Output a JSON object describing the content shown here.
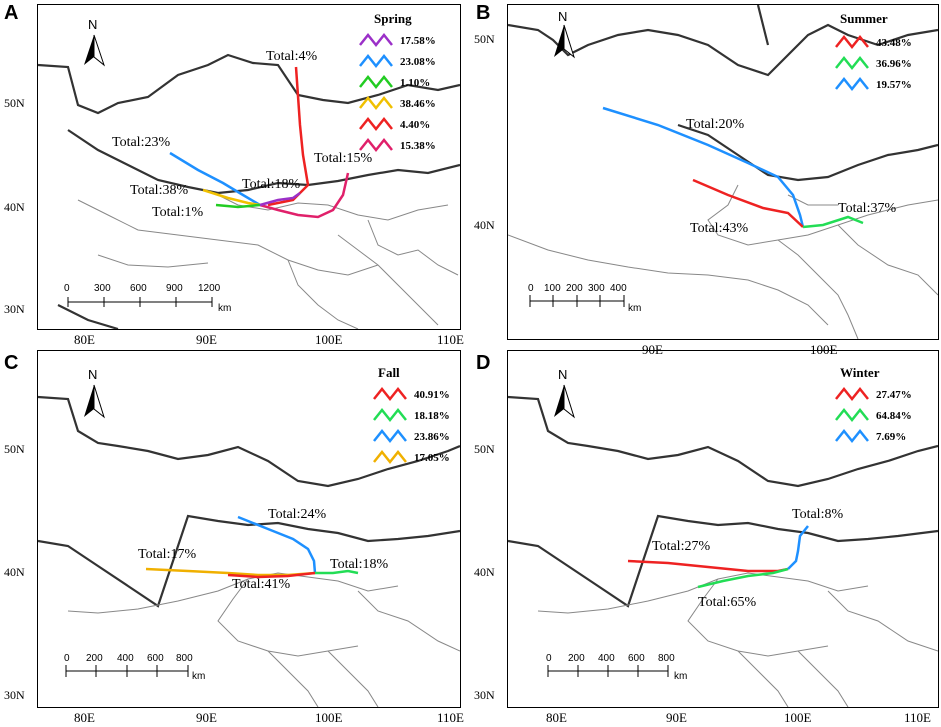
{
  "panels": {
    "A": {
      "letter": "A",
      "season": "Spring",
      "legend": [
        {
          "pct": "17.58%",
          "color": "#9b30c8"
        },
        {
          "pct": "23.08%",
          "color": "#1e90ff"
        },
        {
          "pct": "1.10%",
          "color": "#22cc22"
        },
        {
          "pct": "38.46%",
          "color": "#f0c000"
        },
        {
          "pct": "4.40%",
          "color": "#ee2222"
        },
        {
          "pct": "15.38%",
          "color": "#e0206a"
        }
      ],
      "totals": [
        "Total:4%",
        "Total:23%",
        "Total:15%",
        "Total:38%",
        "Total:18%",
        "Total:1%"
      ],
      "lat_labels": [
        "50N",
        "40N",
        "30N"
      ],
      "scale": {
        "ticks": [
          "0",
          "300",
          "600",
          "900",
          "1200"
        ],
        "unit": "km"
      }
    },
    "B": {
      "letter": "B",
      "season": "Summer",
      "legend": [
        {
          "pct": "43.48%",
          "color": "#ee2222"
        },
        {
          "pct": "36.96%",
          "color": "#22dd55"
        },
        {
          "pct": "19.57%",
          "color": "#1e90ff"
        }
      ],
      "totals": [
        "Total:20%",
        "Total:37%",
        "Total:43%"
      ],
      "lat_labels": [
        "50N",
        "40N"
      ],
      "scale": {
        "ticks": [
          "0",
          "100",
          "200",
          "300",
          "400"
        ],
        "unit": "km"
      }
    },
    "C": {
      "letter": "C",
      "season": "Fall",
      "legend": [
        {
          "pct": "40.91%",
          "color": "#ee2222"
        },
        {
          "pct": "18.18%",
          "color": "#22dd55"
        },
        {
          "pct": "23.86%",
          "color": "#1e90ff"
        },
        {
          "pct": "17.05%",
          "color": "#f0b000"
        }
      ],
      "totals": [
        "Total:24%",
        "Total:17%",
        "Total:18%",
        "Total:41%"
      ],
      "lat_labels": [
        "50N",
        "40N",
        "30N"
      ],
      "scale": {
        "ticks": [
          "0",
          "200",
          "400",
          "600",
          "800"
        ],
        "unit": "km"
      }
    },
    "D": {
      "letter": "D",
      "season": "Winter",
      "legend": [
        {
          "pct": "27.47%",
          "color": "#ee2222"
        },
        {
          "pct": "64.84%",
          "color": "#22dd55"
        },
        {
          "pct": "7.69%",
          "color": "#1e90ff"
        }
      ],
      "totals": [
        "Total:8%",
        "Total:27%",
        "Total:65%"
      ],
      "lat_labels": [
        "50N",
        "40N",
        "30N"
      ],
      "scale": {
        "ticks": [
          "0",
          "200",
          "400",
          "600",
          "800"
        ],
        "unit": "km"
      }
    }
  },
  "lon_labels_left": [
    "80E",
    "90E",
    "100E",
    "110E"
  ],
  "lon_labels_right": [
    "90E",
    "100E"
  ],
  "lon_labels_bottom_right": [
    "80E",
    "90E",
    "100E",
    "110E"
  ],
  "north_label": "N"
}
